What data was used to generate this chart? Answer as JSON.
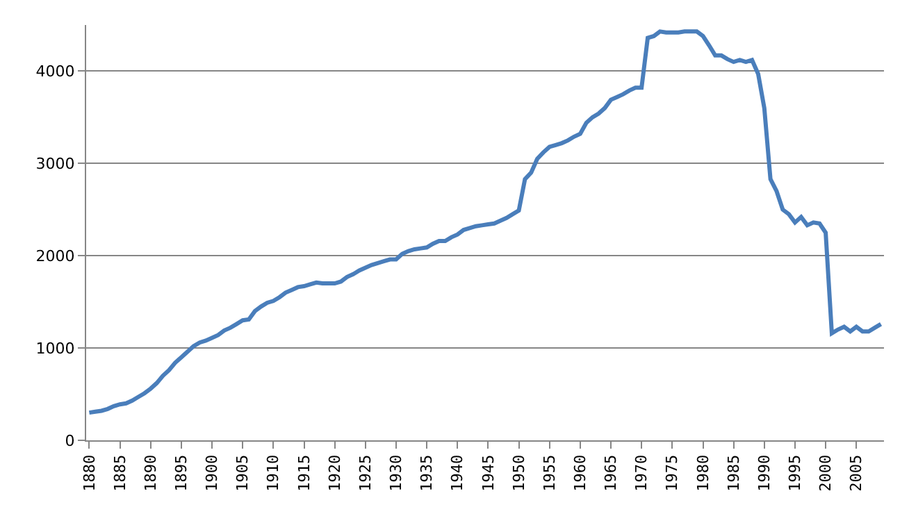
{
  "chart_data": {
    "type": "line",
    "x": [
      1880,
      1881,
      1882,
      1883,
      1884,
      1885,
      1886,
      1887,
      1888,
      1889,
      1890,
      1891,
      1892,
      1893,
      1894,
      1895,
      1896,
      1897,
      1898,
      1899,
      1900,
      1901,
      1902,
      1903,
      1904,
      1905,
      1906,
      1907,
      1908,
      1909,
      1910,
      1911,
      1912,
      1913,
      1914,
      1915,
      1916,
      1917,
      1918,
      1919,
      1920,
      1921,
      1922,
      1923,
      1924,
      1925,
      1926,
      1927,
      1928,
      1929,
      1930,
      1931,
      1932,
      1933,
      1934,
      1935,
      1936,
      1937,
      1938,
      1939,
      1940,
      1941,
      1942,
      1943,
      1944,
      1945,
      1946,
      1947,
      1948,
      1949,
      1950,
      1951,
      1952,
      1953,
      1954,
      1955,
      1956,
      1957,
      1958,
      1959,
      1960,
      1961,
      1962,
      1963,
      1964,
      1965,
      1966,
      1967,
      1968,
      1969,
      1970,
      1971,
      1972,
      1973,
      1974,
      1975,
      1976,
      1977,
      1978,
      1979,
      1980,
      1981,
      1982,
      1983,
      1984,
      1985,
      1986,
      1987,
      1988,
      1989,
      1990,
      1991,
      1992,
      1993,
      1994,
      1995,
      1996,
      1997,
      1998,
      1999,
      2000,
      2001,
      2002,
      2003,
      2004,
      2005,
      2006,
      2007,
      2008,
      2009
    ],
    "series": [
      {
        "color": "#4a7ebb",
        "values": [
          300,
          310,
          320,
          340,
          370,
          390,
          400,
          430,
          470,
          510,
          560,
          620,
          700,
          760,
          840,
          900,
          960,
          1020,
          1060,
          1080,
          1110,
          1140,
          1190,
          1220,
          1260,
          1300,
          1310,
          1400,
          1450,
          1490,
          1510,
          1550,
          1600,
          1630,
          1660,
          1670,
          1690,
          1710,
          1700,
          1700,
          1700,
          1720,
          1770,
          1800,
          1840,
          1870,
          1900,
          1920,
          1940,
          1960,
          1960,
          2020,
          2050,
          2070,
          2080,
          2090,
          2130,
          2160,
          2160,
          2200,
          2230,
          2280,
          2300,
          2320,
          2330,
          2340,
          2350,
          2380,
          2410,
          2450,
          2490,
          2830,
          2900,
          3050,
          3120,
          3180,
          3200,
          3220,
          3250,
          3290,
          3320,
          3440,
          3500,
          3540,
          3600,
          3690,
          3720,
          3750,
          3790,
          3820,
          3820,
          4360,
          4380,
          4430,
          4420,
          4420,
          4420,
          4430,
          4430,
          4430,
          4380,
          4280,
          4170,
          4170,
          4130,
          4100,
          4120,
          4100,
          4120,
          3970,
          3600,
          2830,
          2700,
          2500,
          2450,
          2360,
          2420,
          2330,
          2360,
          2350,
          2250,
          1160,
          1200,
          1230,
          1180,
          1230,
          1180,
          1180,
          1220,
          1260
        ]
      }
    ],
    "xlim": [
      1879.5,
      2009.5
    ],
    "xticks": [
      1880,
      1885,
      1890,
      1895,
      1900,
      1905,
      1910,
      1915,
      1920,
      1925,
      1930,
      1935,
      1940,
      1945,
      1950,
      1955,
      1960,
      1965,
      1970,
      1975,
      1980,
      1985,
      1990,
      1995,
      2000,
      2005
    ],
    "ylim": [
      0,
      4500
    ],
    "yticks": [
      0,
      1000,
      2000,
      3000,
      4000
    ],
    "grid": "y",
    "marker": "none",
    "line_style": "solid"
  }
}
